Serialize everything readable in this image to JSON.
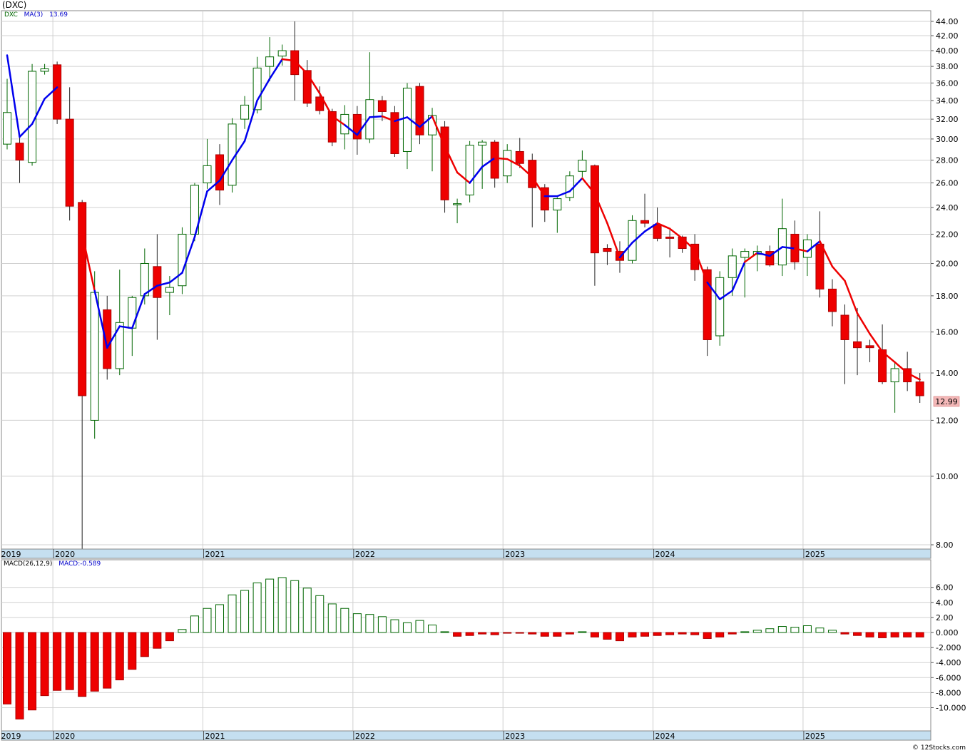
{
  "header": {
    "title": "(DXC)",
    "symbol": "DXC",
    "ma_label": "MA(3)",
    "ma_value": "13.69",
    "macd_label": "MACD(26,12,9)",
    "macd_value": "MACD:-0.589",
    "last_price": "12.99",
    "credit": "© 12Stocks.com"
  },
  "colors": {
    "up_candle": "#006600",
    "down_candle": "#ee0000",
    "ma_rising": "#0000ee",
    "ma_falling": "#ee0000",
    "grid": "#d0d0d0",
    "year_strip": "#c5dff0",
    "price_tag": "#f4b8b8"
  },
  "chart_data": [
    {
      "type": "candlestick",
      "title": "(DXC)",
      "scale": "log",
      "interval": "monthly",
      "ylim": [
        7.8,
        45
      ],
      "y_ticks": [
        "44.00",
        "42.00",
        "40.00",
        "38.00",
        "36.00",
        "34.00",
        "32.00",
        "30.00",
        "28.00",
        "26.00",
        "24.00",
        "22.00",
        "20.00",
        "18.00",
        "16.00",
        "14.00",
        "12.00",
        "10.00",
        "8.00"
      ],
      "x_labels": [
        "2019",
        "2020",
        "2021",
        "2022",
        "2023",
        "2024",
        "2025"
      ],
      "grid": true,
      "last_price": 12.99,
      "ohlc": [
        {
          "o": 29.5,
          "h": 36.5,
          "l": 29.0,
          "c": 32.7
        },
        {
          "o": 29.6,
          "h": 30.5,
          "l": 26.0,
          "c": 28.0
        },
        {
          "o": 27.8,
          "h": 38.3,
          "l": 27.5,
          "c": 37.4
        },
        {
          "o": 37.4,
          "h": 38.3,
          "l": 37.0,
          "c": 37.7
        },
        {
          "o": 38.2,
          "h": 38.6,
          "l": 31.5,
          "c": 32.0
        },
        {
          "o": 32.0,
          "h": 35.5,
          "l": 23.0,
          "c": 24.1
        },
        {
          "o": 24.4,
          "h": 24.6,
          "l": 7.8,
          "c": 13.0
        },
        {
          "o": 12.0,
          "h": 19.5,
          "l": 11.3,
          "c": 18.2
        },
        {
          "o": 17.2,
          "h": 18.0,
          "l": 13.7,
          "c": 14.2
        },
        {
          "o": 14.2,
          "h": 19.6,
          "l": 13.9,
          "c": 16.5
        },
        {
          "o": 16.2,
          "h": 18.0,
          "l": 14.8,
          "c": 17.9
        },
        {
          "o": 18.0,
          "h": 21.0,
          "l": 17.5,
          "c": 20.0
        },
        {
          "o": 19.8,
          "h": 22.0,
          "l": 15.6,
          "c": 17.9
        },
        {
          "o": 18.2,
          "h": 19.2,
          "l": 16.9,
          "c": 18.5
        },
        {
          "o": 18.6,
          "h": 22.5,
          "l": 18.1,
          "c": 22.0
        },
        {
          "o": 22.0,
          "h": 26.0,
          "l": 21.5,
          "c": 25.8
        },
        {
          "o": 26.0,
          "h": 30.0,
          "l": 25.5,
          "c": 27.5
        },
        {
          "o": 28.5,
          "h": 29.5,
          "l": 24.2,
          "c": 25.4
        },
        {
          "o": 25.8,
          "h": 32.1,
          "l": 25.2,
          "c": 31.5
        },
        {
          "o": 32.0,
          "h": 34.5,
          "l": 31.0,
          "c": 33.5
        },
        {
          "o": 33.0,
          "h": 39.2,
          "l": 32.6,
          "c": 37.8
        },
        {
          "o": 38.0,
          "h": 41.8,
          "l": 36.2,
          "c": 39.2
        },
        {
          "o": 39.3,
          "h": 40.8,
          "l": 38.1,
          "c": 40.0
        },
        {
          "o": 40.0,
          "h": 44.0,
          "l": 34.0,
          "c": 37.0
        },
        {
          "o": 37.5,
          "h": 38.8,
          "l": 33.3,
          "c": 33.7
        },
        {
          "o": 34.4,
          "h": 35.6,
          "l": 32.5,
          "c": 32.9
        },
        {
          "o": 32.8,
          "h": 33.1,
          "l": 29.3,
          "c": 29.7
        },
        {
          "o": 30.5,
          "h": 33.5,
          "l": 29.0,
          "c": 32.5
        },
        {
          "o": 32.5,
          "h": 33.4,
          "l": 28.5,
          "c": 30.0
        },
        {
          "o": 30.0,
          "h": 39.8,
          "l": 29.6,
          "c": 34.1
        },
        {
          "o": 34.0,
          "h": 34.5,
          "l": 31.8,
          "c": 32.8
        },
        {
          "o": 32.7,
          "h": 33.4,
          "l": 28.3,
          "c": 28.6
        },
        {
          "o": 28.8,
          "h": 36.0,
          "l": 27.2,
          "c": 35.4
        },
        {
          "o": 35.6,
          "h": 36.0,
          "l": 29.5,
          "c": 30.4
        },
        {
          "o": 30.4,
          "h": 33.2,
          "l": 27.0,
          "c": 32.4
        },
        {
          "o": 31.2,
          "h": 31.8,
          "l": 23.6,
          "c": 24.6
        },
        {
          "o": 24.3,
          "h": 24.7,
          "l": 22.8,
          "c": 24.3
        },
        {
          "o": 25.0,
          "h": 29.8,
          "l": 24.4,
          "c": 29.4
        },
        {
          "o": 29.4,
          "h": 29.9,
          "l": 25.5,
          "c": 29.7
        },
        {
          "o": 29.7,
          "h": 29.9,
          "l": 25.6,
          "c": 26.4
        },
        {
          "o": 26.6,
          "h": 29.5,
          "l": 26.0,
          "c": 28.9
        },
        {
          "o": 28.8,
          "h": 30.1,
          "l": 27.3,
          "c": 27.7
        },
        {
          "o": 28.0,
          "h": 28.6,
          "l": 22.5,
          "c": 25.6
        },
        {
          "o": 25.6,
          "h": 25.9,
          "l": 22.9,
          "c": 23.8
        },
        {
          "o": 23.8,
          "h": 24.8,
          "l": 22.1,
          "c": 24.7
        },
        {
          "o": 24.8,
          "h": 27.0,
          "l": 24.5,
          "c": 26.6
        },
        {
          "o": 27.0,
          "h": 28.9,
          "l": 26.5,
          "c": 28.0
        },
        {
          "o": 27.5,
          "h": 27.6,
          "l": 18.6,
          "c": 20.7
        },
        {
          "o": 21.0,
          "h": 21.3,
          "l": 19.9,
          "c": 20.8
        },
        {
          "o": 20.8,
          "h": 21.5,
          "l": 19.4,
          "c": 20.2
        },
        {
          "o": 20.2,
          "h": 23.4,
          "l": 20.0,
          "c": 23.0
        },
        {
          "o": 23.0,
          "h": 25.1,
          "l": 22.5,
          "c": 22.8
        },
        {
          "o": 22.7,
          "h": 24.0,
          "l": 21.5,
          "c": 21.7
        },
        {
          "o": 21.8,
          "h": 22.3,
          "l": 20.4,
          "c": 21.7
        },
        {
          "o": 21.8,
          "h": 21.9,
          "l": 20.7,
          "c": 21.0
        },
        {
          "o": 21.3,
          "h": 22.0,
          "l": 18.9,
          "c": 19.6
        },
        {
          "o": 19.6,
          "h": 19.8,
          "l": 14.8,
          "c": 15.6
        },
        {
          "o": 15.8,
          "h": 19.5,
          "l": 15.3,
          "c": 19.1
        },
        {
          "o": 19.1,
          "h": 21.0,
          "l": 18.0,
          "c": 20.5
        },
        {
          "o": 20.4,
          "h": 21.0,
          "l": 17.9,
          "c": 20.8
        },
        {
          "o": 20.6,
          "h": 21.2,
          "l": 19.5,
          "c": 20.8
        },
        {
          "o": 20.8,
          "h": 21.2,
          "l": 19.8,
          "c": 19.9
        },
        {
          "o": 19.9,
          "h": 24.7,
          "l": 19.2,
          "c": 22.4
        },
        {
          "o": 22.0,
          "h": 23.0,
          "l": 19.6,
          "c": 20.1
        },
        {
          "o": 20.4,
          "h": 22.0,
          "l": 19.2,
          "c": 21.6
        },
        {
          "o": 21.3,
          "h": 23.7,
          "l": 17.9,
          "c": 18.4
        },
        {
          "o": 18.4,
          "h": 19.0,
          "l": 16.3,
          "c": 17.1
        },
        {
          "o": 16.9,
          "h": 17.5,
          "l": 13.5,
          "c": 15.6
        },
        {
          "o": 15.5,
          "h": 17.3,
          "l": 13.9,
          "c": 15.2
        },
        {
          "o": 15.3,
          "h": 15.6,
          "l": 14.5,
          "c": 15.2
        },
        {
          "o": 15.1,
          "h": 16.4,
          "l": 13.5,
          "c": 13.6
        },
        {
          "o": 13.6,
          "h": 14.5,
          "l": 12.3,
          "c": 14.2
        },
        {
          "o": 14.2,
          "h": 15.0,
          "l": 13.2,
          "c": 13.6
        },
        {
          "o": 13.6,
          "h": 14.0,
          "l": 12.7,
          "c": 13.0
        }
      ],
      "ma3": [
        39.4,
        30.2,
        31.5,
        34.2,
        35.5,
        null,
        22.0,
        18.3,
        15.2,
        16.3,
        16.2,
        18.1,
        18.6,
        18.8,
        19.4,
        21.8,
        25.3,
        26.2,
        28.0,
        29.8,
        34.0,
        36.5,
        38.9,
        38.7,
        37.1,
        34.8,
        32.3,
        31.4,
        30.4,
        32.2,
        32.3,
        31.8,
        32.2,
        31.2,
        32.3,
        29.3,
        26.9,
        26.0,
        27.4,
        28.2,
        28.1,
        27.5,
        26.5,
        24.9,
        24.9,
        25.3,
        26.4,
        25.1,
        22.8,
        20.4,
        21.4,
        22.2,
        22.8,
        22.4,
        21.7,
        20.9,
        18.8,
        17.8,
        18.3,
        20.1,
        20.7,
        20.5,
        21.1,
        21.0,
        20.8,
        21.5,
        19.8,
        18.9,
        17.0,
        15.9,
        15.0,
        14.5,
        14.0,
        13.7
      ],
      "ma3_color": [
        "r",
        "b",
        "b",
        "b",
        "b",
        null,
        "r",
        "r",
        "b",
        "b",
        "b",
        "b",
        "b",
        "b",
        "b",
        "b",
        "b",
        "b",
        "b",
        "b",
        "b",
        "b",
        "b",
        "r",
        "r",
        "r",
        "r",
        "r",
        "b",
        "b",
        "b",
        "r",
        "b",
        "b",
        "b",
        "r",
        "r",
        "r",
        "b",
        "b",
        "r",
        "r",
        "r",
        "r",
        "b",
        "b",
        "b",
        "r",
        "r",
        "r",
        "b",
        "b",
        "b",
        "r",
        "r",
        "r",
        "r",
        "b",
        "b",
        "b",
        "r",
        "b",
        "b",
        "b",
        "r",
        "b",
        "r",
        "r",
        "r",
        "r",
        "r",
        "r",
        "r",
        "r"
      ]
    },
    {
      "type": "bar",
      "title": "MACD(26,12,9)",
      "ylim": [
        -11.5,
        7.5
      ],
      "y_ticks": [
        "6.00",
        "4.00",
        "2.00",
        "0.000",
        "-2.000",
        "-4.000",
        "-6.000",
        "-8.000",
        "-10.000"
      ],
      "x_labels": [
        "2019",
        "2020",
        "2021",
        "2022",
        "2023",
        "2024",
        "2025"
      ],
      "values": [
        -9.5,
        -11.5,
        -10.3,
        -8.4,
        -7.7,
        -7.6,
        -8.5,
        -7.8,
        -7.4,
        -6.3,
        -4.9,
        -3.2,
        -2.1,
        -1.1,
        0.4,
        2.2,
        3.2,
        3.7,
        5.0,
        5.6,
        6.6,
        7.1,
        7.3,
        6.9,
        5.9,
        4.9,
        3.8,
        3.2,
        2.5,
        2.4,
        2.1,
        1.7,
        1.3,
        1.6,
        1.0,
        0.1,
        -0.5,
        -0.4,
        -0.2,
        -0.3,
        -0.1,
        -0.1,
        -0.2,
        -0.5,
        -0.5,
        -0.2,
        0.1,
        -0.6,
        -0.9,
        -1.1,
        -0.6,
        -0.5,
        -0.4,
        -0.3,
        -0.2,
        -0.3,
        -0.8,
        -0.6,
        -0.2,
        0.1,
        0.3,
        0.5,
        0.8,
        0.7,
        0.9,
        0.6,
        0.3,
        -0.2,
        -0.4,
        -0.6,
        -0.7,
        -0.6,
        -0.6,
        -0.6
      ]
    }
  ]
}
